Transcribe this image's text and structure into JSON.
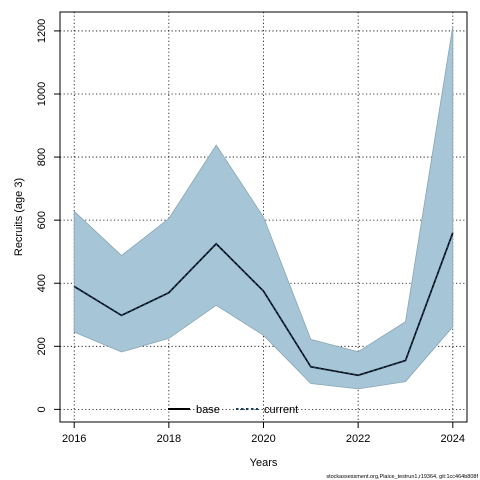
{
  "chart_data": {
    "type": "area",
    "xlabel": "Years",
    "ylabel": "Recruits (age 3)",
    "xlim": [
      2015.7,
      2024.3
    ],
    "ylim": [
      -40,
      1260
    ],
    "x_ticks": [
      2016,
      2018,
      2020,
      2022,
      2024
    ],
    "y_ticks": [
      0,
      200,
      400,
      600,
      800,
      1000,
      1200
    ],
    "grid": true,
    "x": [
      2016,
      2017,
      2018,
      2019,
      2020,
      2021,
      2022,
      2023,
      2024
    ],
    "band": {
      "upper": [
        628,
        488,
        605,
        838,
        610,
        222,
        183,
        278,
        1215
      ],
      "lower": [
        245,
        182,
        225,
        330,
        235,
        82,
        65,
        88,
        262
      ],
      "color": "#a6c5d6"
    },
    "series": [
      {
        "name": "base",
        "values": [
          390,
          298,
          370,
          525,
          375,
          135,
          108,
          155,
          560
        ],
        "color": "#000000",
        "style": "solid"
      },
      {
        "name": "current",
        "values": [
          390,
          298,
          370,
          525,
          375,
          135,
          108,
          155,
          560
        ],
        "color": "#1a3a5c",
        "style": "dotted"
      }
    ],
    "legend_position": "bottom-center"
  },
  "footer": "stockassessment.org,Plaice_testrun1,r19364, git:1cc464b808f"
}
